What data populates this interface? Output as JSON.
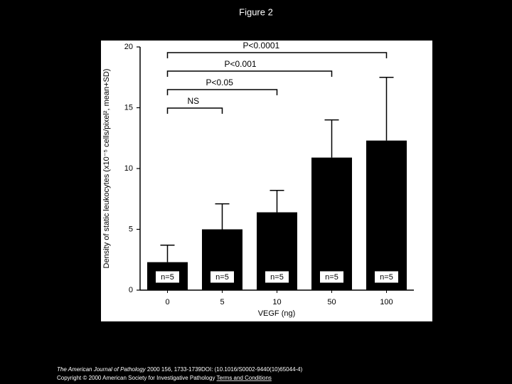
{
  "page_title": "Figure 2",
  "chart_data": {
    "type": "bar",
    "y_label": "Density of static leukocytes (x10⁻⁵ cells/pixel², mean+SD)",
    "x_label": "VEGF (ng)",
    "categories": [
      "0",
      "5",
      "10",
      "50",
      "100"
    ],
    "values": [
      2.3,
      5.0,
      6.4,
      10.9,
      12.3
    ],
    "errors": [
      1.4,
      2.1,
      1.8,
      3.1,
      5.2
    ],
    "n_labels": [
      "n=5",
      "n=5",
      "n=5",
      "n=5",
      "n=5"
    ],
    "color": "#000000",
    "ylim": [
      0,
      20
    ],
    "yticks": [
      0,
      5,
      10,
      15,
      20
    ],
    "annotations": [
      "NS",
      "P<0.05",
      "P<0.001",
      "P<0.0001"
    ]
  },
  "footer": {
    "journal": "The American Journal of Pathology",
    "citation": "2000 156, 1733-1739DOI: (10.1016/S0002-9440(10)65044-4)",
    "copyright": "Copyright © 2000 American Society for Investigative Pathology",
    "link": "Terms and Conditions"
  }
}
